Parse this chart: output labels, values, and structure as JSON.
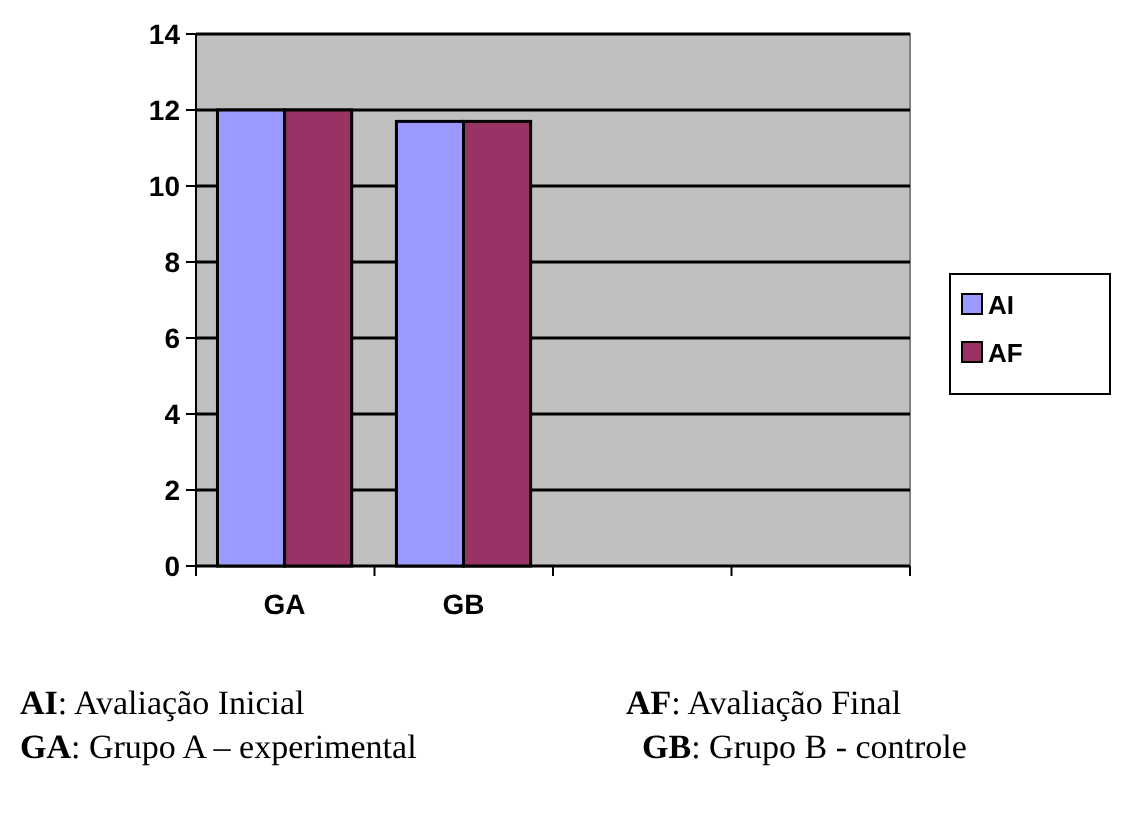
{
  "chart_data": {
    "type": "bar",
    "categories": [
      "GA",
      "GB",
      null,
      null
    ],
    "series": [
      {
        "name": "AI",
        "color": "#9999ff",
        "values": [
          12,
          11.7,
          null,
          null
        ]
      },
      {
        "name": "AF",
        "color": "#993366",
        "values": [
          12,
          11.7,
          null,
          null
        ]
      }
    ],
    "ylim": [
      0,
      14
    ],
    "yticks": [
      0,
      2,
      4,
      6,
      8,
      10,
      12,
      14
    ],
    "grid": "y",
    "legend": "right",
    "annotations": [
      "AI: Avaliação Inicial",
      "AF: Avaliação Final",
      "GA: Grupo A – experimental",
      "GB: Grupo B - controle"
    ]
  }
}
